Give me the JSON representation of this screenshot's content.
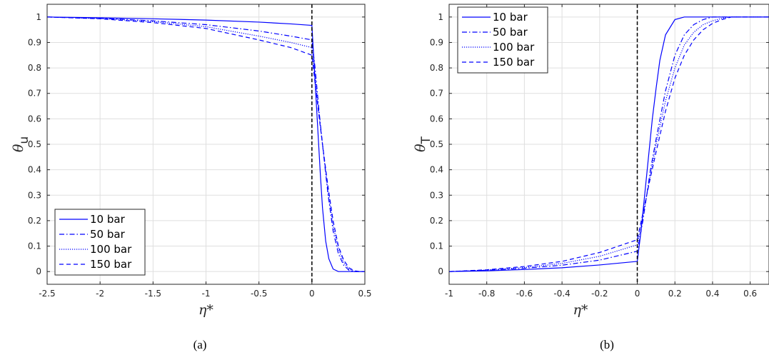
{
  "chart_data": [
    {
      "type": "line",
      "caption": "(a)",
      "xlabel": "η*",
      "ylabel": "θ",
      "ylabel_sub": "u",
      "xlim": [
        -2.5,
        0.5
      ],
      "ylim": [
        -0.05,
        1.05
      ],
      "xticks": [
        "-2.5",
        "-2",
        "-1.5",
        "-1",
        "-0.5",
        "0",
        "0.5"
      ],
      "yticks": [
        "0",
        "0.1",
        "0.2",
        "0.3",
        "0.4",
        "0.5",
        "0.6",
        "0.7",
        "0.8",
        "0.9",
        "1"
      ],
      "grid": true,
      "vline_x": 0,
      "legend": "bottom-left",
      "series": [
        {
          "name": "10 bar",
          "style": "solid",
          "x": [
            -2.5,
            -2.0,
            -1.5,
            -1.0,
            -0.5,
            -0.2,
            0.0,
            0.02,
            0.05,
            0.08,
            0.1,
            0.13,
            0.16,
            0.2,
            0.25,
            0.3,
            0.5
          ],
          "y": [
            1.0,
            0.997,
            0.993,
            0.988,
            0.98,
            0.973,
            0.967,
            0.82,
            0.6,
            0.38,
            0.25,
            0.12,
            0.05,
            0.01,
            0.0,
            0.0,
            0.0
          ]
        },
        {
          "name": "50 bar",
          "style": "dashdot",
          "x": [
            -2.5,
            -2.0,
            -1.5,
            -1.0,
            -0.5,
            -0.2,
            0.0,
            0.03,
            0.07,
            0.1,
            0.15,
            0.2,
            0.25,
            0.3,
            0.35,
            0.4,
            0.5
          ],
          "y": [
            1.0,
            0.995,
            0.985,
            0.97,
            0.945,
            0.925,
            0.91,
            0.8,
            0.62,
            0.5,
            0.31,
            0.16,
            0.07,
            0.025,
            0.005,
            0.0,
            0.0
          ]
        },
        {
          "name": "100 bar",
          "style": "dotted",
          "x": [
            -2.5,
            -2.0,
            -1.5,
            -1.0,
            -0.5,
            -0.2,
            0.0,
            0.03,
            0.07,
            0.1,
            0.15,
            0.2,
            0.25,
            0.3,
            0.35,
            0.4,
            0.5
          ],
          "y": [
            1.0,
            0.994,
            0.982,
            0.962,
            0.925,
            0.9,
            0.88,
            0.77,
            0.61,
            0.5,
            0.32,
            0.18,
            0.09,
            0.035,
            0.01,
            0.0,
            0.0
          ]
        },
        {
          "name": "150 bar",
          "style": "dashed",
          "x": [
            -2.5,
            -2.0,
            -1.5,
            -1.0,
            -0.5,
            -0.2,
            0.0,
            0.03,
            0.07,
            0.1,
            0.15,
            0.2,
            0.25,
            0.3,
            0.35,
            0.4,
            0.45,
            0.5
          ],
          "y": [
            1.0,
            0.993,
            0.978,
            0.955,
            0.91,
            0.88,
            0.85,
            0.74,
            0.6,
            0.5,
            0.34,
            0.2,
            0.1,
            0.045,
            0.015,
            0.003,
            0.0,
            0.0
          ]
        }
      ]
    },
    {
      "type": "line",
      "caption": "(b)",
      "xlabel": "η*",
      "ylabel": "θ",
      "ylabel_sub": "T",
      "xlim": [
        -1,
        0.7
      ],
      "ylim": [
        -0.05,
        1.05
      ],
      "xticks": [
        "-1",
        "-0.8",
        "-0.6",
        "-0.4",
        "-0.2",
        "0",
        "0.2",
        "0.4",
        "0.6"
      ],
      "yticks": [
        "0",
        "0.1",
        "0.2",
        "0.3",
        "0.4",
        "0.5",
        "0.6",
        "0.7",
        "0.8",
        "0.9",
        "1"
      ],
      "grid": true,
      "vline_x": 0,
      "legend": "top-left",
      "series": [
        {
          "name": "10 bar",
          "style": "solid",
          "x": [
            -1.0,
            -0.8,
            -0.6,
            -0.4,
            -0.2,
            0.0,
            0.02,
            0.05,
            0.08,
            0.1,
            0.12,
            0.15,
            0.2,
            0.25,
            0.3,
            0.7
          ],
          "y": [
            0.0,
            0.003,
            0.008,
            0.015,
            0.026,
            0.04,
            0.16,
            0.38,
            0.6,
            0.72,
            0.83,
            0.93,
            0.99,
            1.0,
            1.0,
            1.0
          ]
        },
        {
          "name": "50 bar",
          "style": "dashdot",
          "x": [
            -1.0,
            -0.8,
            -0.6,
            -0.4,
            -0.2,
            0.0,
            0.03,
            0.07,
            0.1,
            0.15,
            0.2,
            0.25,
            0.3,
            0.35,
            0.4,
            0.5,
            0.7
          ],
          "y": [
            0.0,
            0.005,
            0.013,
            0.025,
            0.045,
            0.08,
            0.2,
            0.4,
            0.52,
            0.71,
            0.85,
            0.93,
            0.97,
            0.99,
            1.0,
            1.0,
            1.0
          ]
        },
        {
          "name": "100 bar",
          "style": "dotted",
          "x": [
            -1.0,
            -0.8,
            -0.6,
            -0.4,
            -0.2,
            0.0,
            0.03,
            0.07,
            0.1,
            0.15,
            0.2,
            0.25,
            0.3,
            0.35,
            0.4,
            0.45,
            0.5,
            0.7
          ],
          "y": [
            0.0,
            0.006,
            0.016,
            0.032,
            0.06,
            0.105,
            0.22,
            0.38,
            0.5,
            0.67,
            0.8,
            0.89,
            0.94,
            0.97,
            0.985,
            0.995,
            1.0,
            1.0
          ]
        },
        {
          "name": "150 bar",
          "style": "dashed",
          "x": [
            -1.0,
            -0.8,
            -0.6,
            -0.4,
            -0.2,
            0.0,
            0.03,
            0.07,
            0.1,
            0.15,
            0.2,
            0.25,
            0.3,
            0.35,
            0.4,
            0.45,
            0.5,
            0.7
          ],
          "y": [
            0.0,
            0.007,
            0.02,
            0.04,
            0.075,
            0.125,
            0.23,
            0.37,
            0.47,
            0.63,
            0.76,
            0.85,
            0.91,
            0.95,
            0.975,
            0.99,
            1.0,
            1.0
          ]
        }
      ]
    }
  ],
  "colors": {
    "series": "#0000ff",
    "axes": "#262626",
    "grid": "#dfdfdf",
    "vline": "#000000"
  }
}
